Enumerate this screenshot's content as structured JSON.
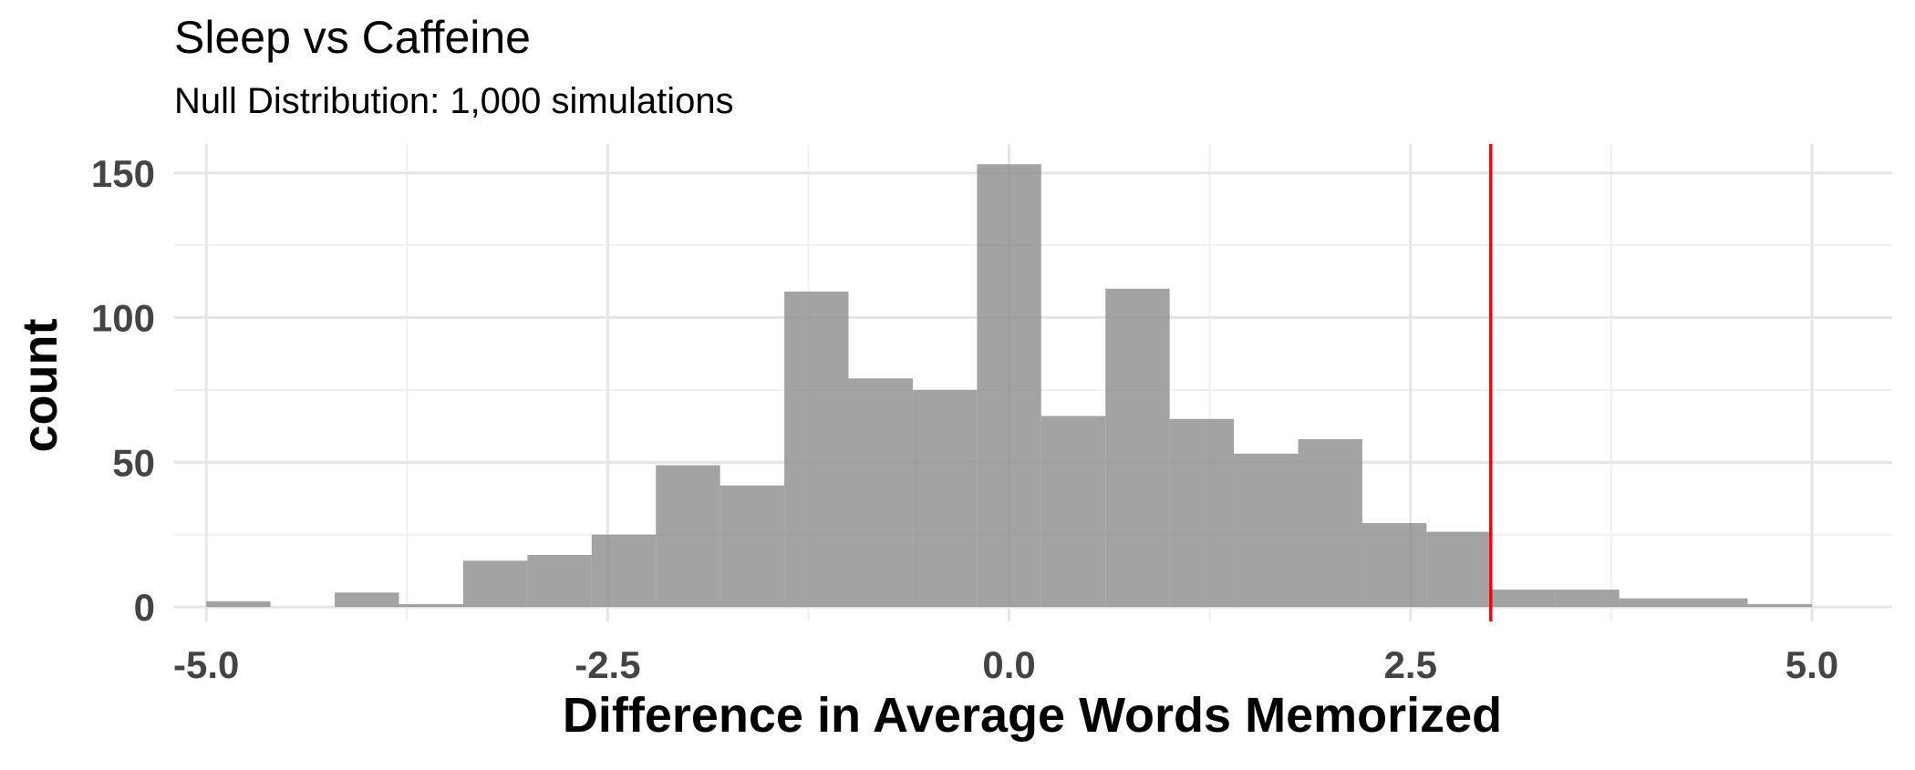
{
  "chart_data": {
    "type": "bar",
    "title": "Sleep vs Caffeine",
    "subtitle": "Null Distribution: 1,000 simulations",
    "xlabel": "Difference in Average Words Memorized",
    "ylabel": "count",
    "xlim": [
      -5.2,
      5.5
    ],
    "ylim": [
      -5,
      160
    ],
    "x_ticks": [
      -5.0,
      -2.5,
      0.0,
      2.5,
      5.0
    ],
    "x_tick_labels": [
      "-5.0",
      "-2.5",
      "0.0",
      "2.5",
      "5.0"
    ],
    "y_ticks": [
      0,
      50,
      100,
      150
    ],
    "y_tick_labels": [
      "0",
      "50",
      "100",
      "150"
    ],
    "bin_width": 0.4,
    "bins": [
      {
        "x0": -5.0,
        "x1": -4.6,
        "count": 2
      },
      {
        "x0": -4.6,
        "x1": -4.2,
        "count": 0
      },
      {
        "x0": -4.2,
        "x1": -3.8,
        "count": 5
      },
      {
        "x0": -3.8,
        "x1": -3.4,
        "count": 1
      },
      {
        "x0": -3.4,
        "x1": -3.0,
        "count": 16
      },
      {
        "x0": -3.0,
        "x1": -2.6,
        "count": 18
      },
      {
        "x0": -2.6,
        "x1": -2.2,
        "count": 25
      },
      {
        "x0": -2.2,
        "x1": -1.8,
        "count": 49
      },
      {
        "x0": -1.8,
        "x1": -1.4,
        "count": 42
      },
      {
        "x0": -1.4,
        "x1": -1.0,
        "count": 109
      },
      {
        "x0": -1.0,
        "x1": -0.6,
        "count": 79
      },
      {
        "x0": -0.6,
        "x1": -0.2,
        "count": 75
      },
      {
        "x0": -0.2,
        "x1": 0.2,
        "count": 153
      },
      {
        "x0": 0.2,
        "x1": 0.6,
        "count": 66
      },
      {
        "x0": 0.6,
        "x1": 1.0,
        "count": 110
      },
      {
        "x0": 1.0,
        "x1": 1.4,
        "count": 65
      },
      {
        "x0": 1.4,
        "x1": 1.8,
        "count": 53
      },
      {
        "x0": 1.8,
        "x1": 2.2,
        "count": 58
      },
      {
        "x0": 2.2,
        "x1": 2.6,
        "count": 29
      },
      {
        "x0": 2.6,
        "x1": 3.0,
        "count": 26
      },
      {
        "x0": 3.0,
        "x1": 3.4,
        "count": 6
      },
      {
        "x0": 3.4,
        "x1": 3.8,
        "count": 6
      },
      {
        "x0": 3.8,
        "x1": 4.2,
        "count": 3
      },
      {
        "x0": 4.2,
        "x1": 4.6,
        "count": 3
      },
      {
        "x0": 4.6,
        "x1": 5.0,
        "count": 1
      }
    ],
    "observed_value": 3.0,
    "grid": true,
    "colors": {
      "bar": "#8c8c8c",
      "bar_opacity": 0.8,
      "observed_line": "#ff0000",
      "grid_major": "#e5e5e5",
      "grid_minor": "#f0f0f0"
    }
  }
}
